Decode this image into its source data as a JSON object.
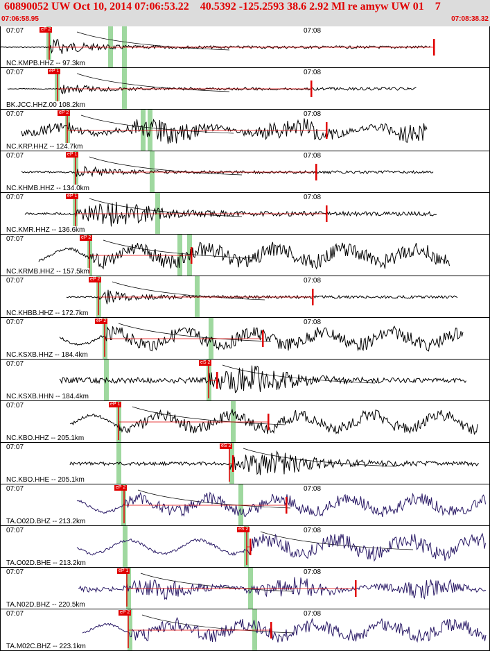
{
  "header": {
    "title": "60890052 UW Oct 10, 2014 07:06:53.22    40.5392 -125.2593 38.6 2.92 Ml re amyw UW 01    7",
    "time_start": "07:06:58.95",
    "time_end": "07:08:38.32",
    "title_color": "#e00000",
    "background": "#dcdcdc"
  },
  "colors": {
    "trace_black": "#000000",
    "trace_purple": "#2a1a66",
    "pick_red": "#e00000",
    "green_band": "#9fd89f",
    "travel_curve": "#000000"
  },
  "panels": [
    {
      "station": "NC.KMPB.HHZ -- 97.3km",
      "time_left": "07:07",
      "time_mid": "07:08",
      "pick": "eP 2",
      "color": "black"
    },
    {
      "station": "BK.JCC.HHZ.00 108.2km",
      "time_left": "07:07",
      "time_mid": "07:08",
      "pick": "eP 1",
      "color": "black"
    },
    {
      "station": "NC.KRP.HHZ -- 124.7km",
      "time_left": "07:07",
      "time_mid": "07:08",
      "pick": "eP 2",
      "color": "black"
    },
    {
      "station": "NC.KHMB.HHZ -- 134.0km",
      "time_left": "07:07",
      "time_mid": "07:08",
      "pick": "eP 1",
      "color": "black"
    },
    {
      "station": "NC.KMR.HHZ -- 136.6km",
      "time_left": "07:07",
      "time_mid": "07:08",
      "pick": "eP 1",
      "color": "black"
    },
    {
      "station": "NC.KRMB.HHZ -- 157.5km",
      "time_left": "07:07",
      "time_mid": "",
      "pick": "eP 2",
      "color": "black"
    },
    {
      "station": "NC.KHBB.HHZ -- 172.7km",
      "time_left": "07:07",
      "time_mid": "07:08",
      "pick": "eP 2",
      "color": "black"
    },
    {
      "station": "NC.KSXB.HHZ -- 184.4km",
      "time_left": "07:07",
      "time_mid": "07:08",
      "pick": "eP 2",
      "color": "black"
    },
    {
      "station": "NC.KSXB.HHN -- 184.4km",
      "time_left": "07:07",
      "time_mid": "",
      "pick": "eS 2",
      "color": "black"
    },
    {
      "station": "NC.KBO.HHZ -- 205.1km",
      "time_left": "07:07",
      "time_mid": "",
      "pick": "eP 1",
      "color": "black"
    },
    {
      "station": "NC.KBO.HHE -- 205.1km",
      "time_left": "07:07",
      "time_mid": "",
      "pick": "eS 2",
      "color": "black"
    },
    {
      "station": "TA.O02D.BHZ -- 213.2km",
      "time_left": "07:07",
      "time_mid": "07:08",
      "pick": "eP 2",
      "color": "purple"
    },
    {
      "station": "TA.O02D.BHE -- 213.2km",
      "time_left": "07:07",
      "time_mid": "07:08",
      "pick": "eS 2",
      "color": "purple"
    },
    {
      "station": "TA.N02D.BHZ -- 220.5km",
      "time_left": "07:07",
      "time_mid": "07:08",
      "pick": "eP 1",
      "color": "purple"
    },
    {
      "station": "TA.M02C.BHZ -- 223.1km",
      "time_left": "07:07",
      "time_mid": "07:08",
      "pick": "eP 2",
      "color": "purple"
    }
  ]
}
